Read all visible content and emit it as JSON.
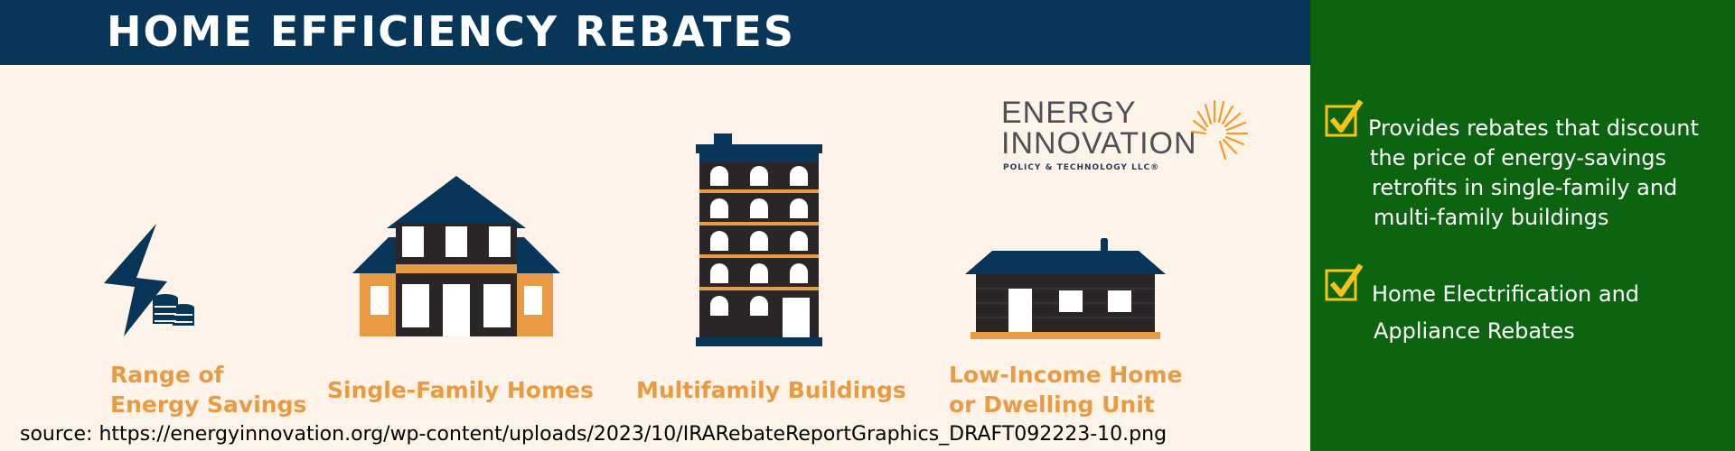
{
  "header": {
    "title": "HOME EFFICIENCY REBATES"
  },
  "categories": [
    {
      "label_lines": [
        "Range of",
        "Energy Savings"
      ],
      "icon": "lightning-coins-icon"
    },
    {
      "label_lines": [
        "Single-Family Homes"
      ],
      "icon": "house-icon"
    },
    {
      "label_lines": [
        "Multifamily Buildings"
      ],
      "icon": "apartment-building-icon"
    },
    {
      "label_lines": [
        "Low-Income Home",
        "or Dwelling Unit"
      ],
      "icon": "small-home-icon"
    }
  ],
  "logo": {
    "line1": "ENERGY",
    "line2": "INNOVATION",
    "sub": "POLICY & TECHNOLOGY LLC®",
    "icon": "sunburst-icon"
  },
  "source": {
    "text": "source:  https://energyinnovation.org/wp-content/uploads/2023/10/IRARebateReportGraphics_DRAFT092223-10.png"
  },
  "sidebar": {
    "bullets": [
      {
        "lines": [
          "Provides rebates that discount",
          "the price of energy-savings",
          "retrofits in single-family and",
          "multi-family buildings"
        ]
      },
      {
        "lines": [
          "Home Electrification and",
          "Appliance Rebates"
        ]
      }
    ]
  },
  "colors": {
    "navy": "#073659",
    "orange": "#e99b43",
    "cream": "#fdf3e8",
    "green": "#0c6410",
    "check": "#f6c418"
  }
}
